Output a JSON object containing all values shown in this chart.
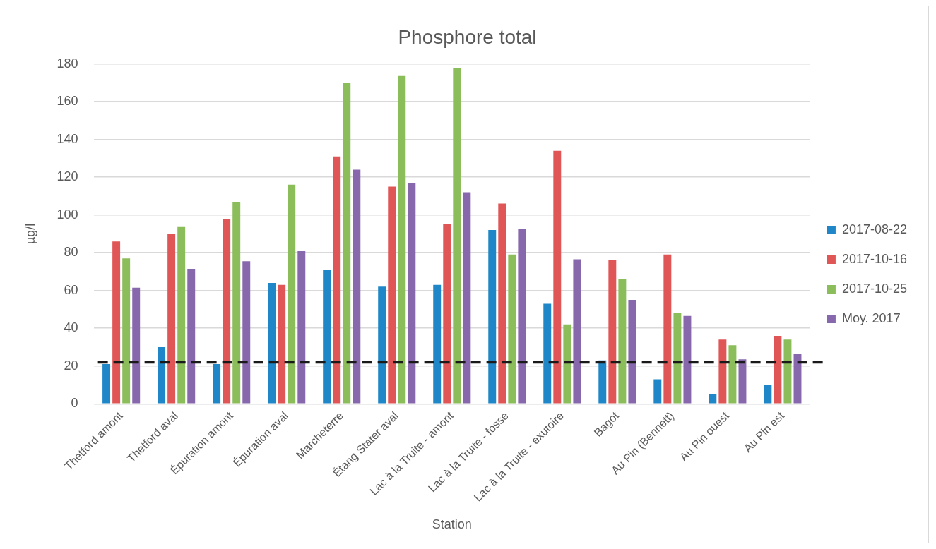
{
  "chart_data": {
    "type": "bar",
    "title": "Phosphore total",
    "xlabel": "Station",
    "ylabel": "µg/l",
    "categories": [
      "Thetford amont",
      "Thetford aval",
      "Épuration amont",
      "Épuration aval",
      "Marcheterre",
      "Étang Stater aval",
      "Lac à la Truite - amont",
      "Lac à la Truite - fosse",
      "Lac à la Truite - exutoire",
      "Bagot",
      "Au Pin (Bennett)",
      "Au Pin ouest",
      "Au Pin est"
    ],
    "series": [
      {
        "name": "2017-08-22",
        "color": "#1f87c8",
        "values": [
          21,
          30,
          21,
          64,
          71,
          62,
          63,
          92,
          53,
          23,
          13,
          5,
          10
        ]
      },
      {
        "name": "2017-10-16",
        "color": "#e05656",
        "values": [
          86,
          90,
          98,
          63,
          131,
          115,
          95,
          106,
          134,
          76,
          79,
          34,
          36
        ]
      },
      {
        "name": "2017-10-25",
        "color": "#8bbd5a",
        "values": [
          77,
          94,
          107,
          116,
          170,
          174,
          178,
          79,
          42,
          66,
          48,
          31,
          34
        ]
      },
      {
        "name": "Moy. 2017",
        "color": "#8868ad",
        "values": [
          61.5,
          71.5,
          75.5,
          81,
          124,
          117,
          112,
          92.5,
          76.5,
          55,
          46.5,
          23.5,
          26.5
        ]
      }
    ],
    "ylim": [
      0,
      180
    ],
    "yticks": [
      0,
      20,
      40,
      60,
      80,
      100,
      120,
      140,
      160,
      180
    ],
    "grid": "y",
    "legend": "right",
    "ref_lines": [
      {
        "axis": "y",
        "value": 22,
        "color": "#1a1a1a",
        "line_style": "dashed"
      }
    ]
  }
}
